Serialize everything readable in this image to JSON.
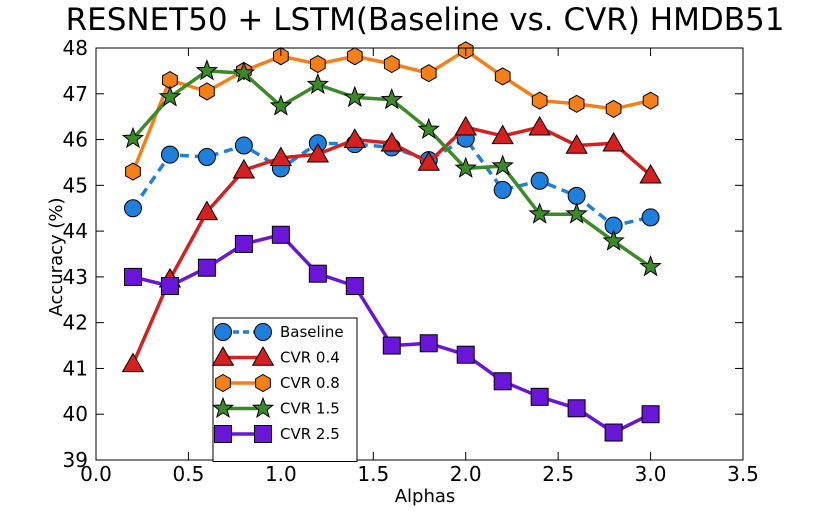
{
  "chart_data": {
    "type": "line",
    "title": "RESNET50 + LSTM(Baseline vs. CVR) HMDB51",
    "xlabel": "Alphas",
    "ylabel": "Accuracy (%)",
    "xlim": [
      0.0,
      3.5
    ],
    "ylim": [
      39,
      48
    ],
    "xticks": [
      0.0,
      0.5,
      1.0,
      1.5,
      2.0,
      2.5,
      3.0,
      3.5
    ],
    "xtick_labels": [
      "0.0",
      "0.5",
      "1.0",
      "1.5",
      "2.0",
      "2.5",
      "3.0",
      "3.5"
    ],
    "yticks": [
      39,
      40,
      41,
      42,
      43,
      44,
      45,
      46,
      47,
      48
    ],
    "ytick_labels": [
      "39",
      "40",
      "41",
      "42",
      "43",
      "44",
      "45",
      "46",
      "47",
      "48"
    ],
    "grid": false,
    "legend_position": "lower-left",
    "x": [
      0.2,
      0.4,
      0.6,
      0.8,
      1.0,
      1.2,
      1.4,
      1.6,
      1.8,
      2.0,
      2.2,
      2.4,
      2.6,
      2.8,
      3.0
    ],
    "series": [
      {
        "name": "Baseline",
        "color": "#1f7fdc",
        "marker": "circle",
        "linestyle": "dashed",
        "values": [
          44.5,
          45.67,
          45.62,
          45.87,
          45.37,
          45.92,
          45.9,
          45.83,
          45.55,
          46.02,
          44.9,
          45.1,
          44.77,
          44.12,
          44.3
        ]
      },
      {
        "name": "CVR 0.4",
        "color": "#d62020",
        "marker": "triangle",
        "linestyle": "solid",
        "values": [
          41.1,
          42.95,
          44.42,
          45.33,
          45.6,
          45.68,
          46.0,
          45.92,
          45.5,
          46.27,
          46.08,
          46.27,
          45.87,
          45.92,
          45.22
        ]
      },
      {
        "name": "CVR 0.8",
        "color": "#f77f17",
        "marker": "hexagon",
        "linestyle": "solid",
        "values": [
          45.3,
          47.3,
          47.05,
          47.5,
          47.82,
          47.65,
          47.82,
          47.65,
          47.45,
          47.95,
          47.38,
          46.85,
          46.78,
          46.67,
          46.85
        ]
      },
      {
        "name": "CVR 1.5",
        "color": "#3b8a27",
        "marker": "star",
        "linestyle": "solid",
        "values": [
          46.02,
          46.93,
          47.5,
          47.45,
          46.73,
          47.2,
          46.92,
          46.87,
          46.22,
          45.37,
          45.42,
          44.37,
          44.37,
          43.78,
          43.22
        ]
      },
      {
        "name": "CVR 2.5",
        "color": "#6a16d8",
        "marker": "square",
        "linestyle": "solid",
        "values": [
          43.0,
          42.8,
          43.2,
          43.72,
          43.92,
          43.07,
          42.8,
          41.5,
          41.55,
          41.3,
          40.72,
          40.38,
          40.13,
          39.6,
          40.0
        ]
      }
    ]
  }
}
